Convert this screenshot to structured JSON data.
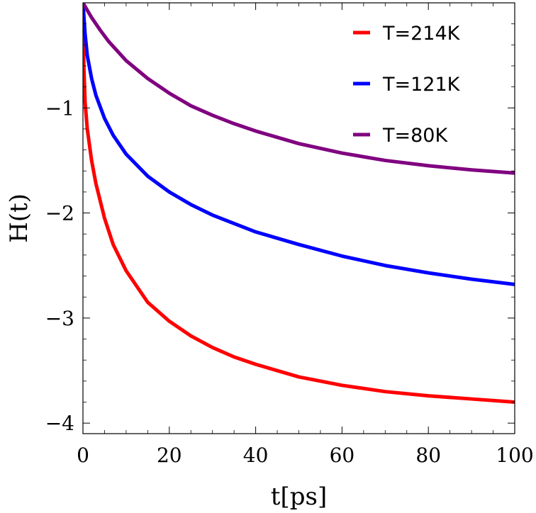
{
  "chart_data": {
    "type": "line",
    "title": "",
    "xlabel": "t[ps]",
    "ylabel": "H(t)",
    "xlim": [
      0,
      100
    ],
    "ylim": [
      -4.1,
      0.0
    ],
    "x_ticks": [
      0,
      20,
      40,
      60,
      80,
      100
    ],
    "x_tick_labels": [
      "0",
      "20",
      "40",
      "60",
      "80",
      "100"
    ],
    "y_ticks": [
      -1,
      -2,
      -3,
      -4
    ],
    "y_tick_labels": [
      "−1",
      "−2",
      "−3",
      "−4"
    ],
    "grid": false,
    "legend_position": "top-right",
    "series": [
      {
        "name": "T=214K",
        "color": "#ff0000",
        "points": [
          [
            0,
            0.0
          ],
          [
            0.2,
            -0.6
          ],
          [
            0.5,
            -0.95
          ],
          [
            1,
            -1.2
          ],
          [
            2,
            -1.5
          ],
          [
            3,
            -1.72
          ],
          [
            5,
            -2.05
          ],
          [
            7,
            -2.3
          ],
          [
            10,
            -2.55
          ],
          [
            15,
            -2.85
          ],
          [
            20,
            -3.03
          ],
          [
            25,
            -3.17
          ],
          [
            30,
            -3.28
          ],
          [
            35,
            -3.37
          ],
          [
            40,
            -3.44
          ],
          [
            50,
            -3.56
          ],
          [
            60,
            -3.64
          ],
          [
            70,
            -3.7
          ],
          [
            80,
            -3.74
          ],
          [
            90,
            -3.77
          ],
          [
            100,
            -3.8
          ]
        ]
      },
      {
        "name": "T=121K",
        "color": "#0000ff",
        "points": [
          [
            0,
            0.0
          ],
          [
            0.5,
            -0.3
          ],
          [
            1,
            -0.5
          ],
          [
            2,
            -0.72
          ],
          [
            3,
            -0.88
          ],
          [
            5,
            -1.1
          ],
          [
            7,
            -1.26
          ],
          [
            10,
            -1.44
          ],
          [
            15,
            -1.65
          ],
          [
            20,
            -1.8
          ],
          [
            25,
            -1.92
          ],
          [
            30,
            -2.02
          ],
          [
            35,
            -2.1
          ],
          [
            40,
            -2.18
          ],
          [
            50,
            -2.3
          ],
          [
            60,
            -2.41
          ],
          [
            70,
            -2.5
          ],
          [
            80,
            -2.57
          ],
          [
            90,
            -2.63
          ],
          [
            100,
            -2.68
          ]
        ]
      },
      {
        "name": "T=80K",
        "color": "#800080",
        "points": [
          [
            0,
            0.0
          ],
          [
            1,
            -0.07
          ],
          [
            2,
            -0.14
          ],
          [
            4,
            -0.26
          ],
          [
            6,
            -0.37
          ],
          [
            8,
            -0.46
          ],
          [
            10,
            -0.55
          ],
          [
            15,
            -0.72
          ],
          [
            20,
            -0.86
          ],
          [
            25,
            -0.98
          ],
          [
            30,
            -1.07
          ],
          [
            35,
            -1.15
          ],
          [
            40,
            -1.22
          ],
          [
            50,
            -1.34
          ],
          [
            60,
            -1.43
          ],
          [
            70,
            -1.5
          ],
          [
            80,
            -1.55
          ],
          [
            90,
            -1.59
          ],
          [
            100,
            -1.62
          ]
        ]
      }
    ]
  }
}
